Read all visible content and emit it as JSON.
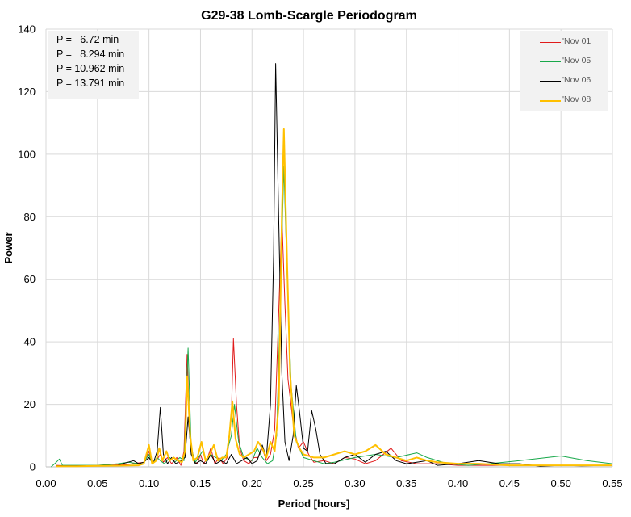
{
  "chart_data": {
    "type": "line",
    "title": "G29-38 Lomb-Scargle Periodogram",
    "xlabel": "Period [hours]",
    "ylabel": "Power",
    "xlim": [
      0,
      0.55
    ],
    "ylim": [
      0,
      140
    ],
    "x_ticks": [
      "0.00",
      "0.05",
      "0.10",
      "0.15",
      "0.20",
      "0.25",
      "0.30",
      "0.35",
      "0.40",
      "0.45",
      "0.50",
      "0.55"
    ],
    "y_ticks": [
      "0",
      "20",
      "40",
      "60",
      "80",
      "100",
      "120",
      "140"
    ],
    "grid": "vertical-and-horizontal",
    "legend_position": "top-right",
    "annotations": [
      "P =   6.72 min",
      "P =   8.294 min",
      "P = 10.962 min",
      "P = 13.791 min"
    ],
    "series": [
      {
        "name": "'Nov 01",
        "color": "#e01b1b",
        "points": [
          [
            0.01,
            0.5
          ],
          [
            0.02,
            0.3
          ],
          [
            0.04,
            0.4
          ],
          [
            0.06,
            0.5
          ],
          [
            0.08,
            0.8
          ],
          [
            0.095,
            1.5
          ],
          [
            0.1,
            5
          ],
          [
            0.103,
            1
          ],
          [
            0.107,
            2
          ],
          [
            0.111,
            4
          ],
          [
            0.114,
            1.5
          ],
          [
            0.118,
            3
          ],
          [
            0.122,
            1
          ],
          [
            0.127,
            3
          ],
          [
            0.131,
            0.5
          ],
          [
            0.134,
            5
          ],
          [
            0.137,
            36
          ],
          [
            0.14,
            8
          ],
          [
            0.143,
            2
          ],
          [
            0.147,
            1
          ],
          [
            0.15,
            4
          ],
          [
            0.153,
            1
          ],
          [
            0.157,
            3
          ],
          [
            0.16,
            6
          ],
          [
            0.164,
            1
          ],
          [
            0.168,
            3
          ],
          [
            0.172,
            1
          ],
          [
            0.176,
            3
          ],
          [
            0.18,
            16
          ],
          [
            0.182,
            41
          ],
          [
            0.185,
            20
          ],
          [
            0.188,
            6
          ],
          [
            0.192,
            2
          ],
          [
            0.197,
            1
          ],
          [
            0.202,
            3
          ],
          [
            0.206,
            3
          ],
          [
            0.21,
            6
          ],
          [
            0.214,
            2
          ],
          [
            0.218,
            4
          ],
          [
            0.222,
            12
          ],
          [
            0.226,
            50
          ],
          [
            0.229,
            80
          ],
          [
            0.232,
            52
          ],
          [
            0.235,
            28
          ],
          [
            0.24,
            14
          ],
          [
            0.245,
            6
          ],
          [
            0.25,
            8
          ],
          [
            0.255,
            4
          ],
          [
            0.26,
            1.5
          ],
          [
            0.27,
            2
          ],
          [
            0.28,
            1
          ],
          [
            0.29,
            3
          ],
          [
            0.3,
            2.5
          ],
          [
            0.31,
            1
          ],
          [
            0.32,
            2
          ],
          [
            0.335,
            6
          ],
          [
            0.345,
            2
          ],
          [
            0.36,
            1
          ],
          [
            0.38,
            1
          ],
          [
            0.4,
            0.5
          ],
          [
            0.45,
            0.5
          ],
          [
            0.5,
            0.5
          ],
          [
            0.55,
            0.5
          ]
        ]
      },
      {
        "name": "'Nov 05",
        "color": "#18a84a",
        "points": [
          [
            0.005,
            0
          ],
          [
            0.01,
            1.5
          ],
          [
            0.013,
            2.5
          ],
          [
            0.016,
            0.5
          ],
          [
            0.03,
            0.5
          ],
          [
            0.05,
            0.5
          ],
          [
            0.07,
            1
          ],
          [
            0.08,
            1.5
          ],
          [
            0.09,
            1
          ],
          [
            0.095,
            1.5
          ],
          [
            0.1,
            4
          ],
          [
            0.103,
            1
          ],
          [
            0.108,
            3
          ],
          [
            0.111,
            2
          ],
          [
            0.115,
            1
          ],
          [
            0.12,
            3
          ],
          [
            0.125,
            1.5
          ],
          [
            0.13,
            3
          ],
          [
            0.134,
            2
          ],
          [
            0.138,
            38
          ],
          [
            0.141,
            6
          ],
          [
            0.145,
            1.5
          ],
          [
            0.148,
            3
          ],
          [
            0.152,
            5
          ],
          [
            0.156,
            1.5
          ],
          [
            0.16,
            4
          ],
          [
            0.165,
            3
          ],
          [
            0.17,
            2
          ],
          [
            0.175,
            4
          ],
          [
            0.18,
            10
          ],
          [
            0.183,
            20
          ],
          [
            0.187,
            8
          ],
          [
            0.192,
            3
          ],
          [
            0.2,
            2
          ],
          [
            0.205,
            6
          ],
          [
            0.21,
            3
          ],
          [
            0.215,
            1
          ],
          [
            0.22,
            2
          ],
          [
            0.224,
            10
          ],
          [
            0.228,
            60
          ],
          [
            0.231,
            96
          ],
          [
            0.234,
            62
          ],
          [
            0.238,
            26
          ],
          [
            0.243,
            8
          ],
          [
            0.25,
            3
          ],
          [
            0.26,
            2
          ],
          [
            0.27,
            1
          ],
          [
            0.28,
            1.5
          ],
          [
            0.3,
            3
          ],
          [
            0.32,
            4
          ],
          [
            0.34,
            3
          ],
          [
            0.36,
            4.5
          ],
          [
            0.37,
            3
          ],
          [
            0.39,
            1
          ],
          [
            0.41,
            0.5
          ],
          [
            0.43,
            1
          ],
          [
            0.46,
            2
          ],
          [
            0.5,
            3.5
          ],
          [
            0.525,
            2
          ],
          [
            0.55,
            1
          ]
        ]
      },
      {
        "name": "'Nov 06",
        "color": "#000000",
        "points": [
          [
            0.01,
            0.3
          ],
          [
            0.03,
            0.3
          ],
          [
            0.05,
            0.4
          ],
          [
            0.07,
            0.6
          ],
          [
            0.085,
            2
          ],
          [
            0.09,
            1
          ],
          [
            0.095,
            1.5
          ],
          [
            0.1,
            3
          ],
          [
            0.104,
            1
          ],
          [
            0.108,
            5
          ],
          [
            0.111,
            19
          ],
          [
            0.114,
            4
          ],
          [
            0.118,
            1
          ],
          [
            0.122,
            3
          ],
          [
            0.126,
            1
          ],
          [
            0.131,
            2
          ],
          [
            0.135,
            3
          ],
          [
            0.138,
            16
          ],
          [
            0.141,
            4
          ],
          [
            0.145,
            1
          ],
          [
            0.15,
            2
          ],
          [
            0.155,
            1
          ],
          [
            0.16,
            4
          ],
          [
            0.165,
            1
          ],
          [
            0.17,
            2
          ],
          [
            0.175,
            1
          ],
          [
            0.18,
            4
          ],
          [
            0.185,
            1
          ],
          [
            0.19,
            2
          ],
          [
            0.195,
            3
          ],
          [
            0.2,
            1
          ],
          [
            0.205,
            2
          ],
          [
            0.21,
            7
          ],
          [
            0.214,
            3
          ],
          [
            0.218,
            20
          ],
          [
            0.221,
            68
          ],
          [
            0.223,
            129
          ],
          [
            0.226,
            78
          ],
          [
            0.229,
            30
          ],
          [
            0.232,
            8
          ],
          [
            0.236,
            2
          ],
          [
            0.24,
            10
          ],
          [
            0.243,
            26
          ],
          [
            0.246,
            18
          ],
          [
            0.25,
            6
          ],
          [
            0.254,
            5
          ],
          [
            0.258,
            18
          ],
          [
            0.262,
            12
          ],
          [
            0.266,
            4
          ],
          [
            0.272,
            1
          ],
          [
            0.28,
            1
          ],
          [
            0.29,
            3
          ],
          [
            0.3,
            4
          ],
          [
            0.31,
            1.5
          ],
          [
            0.32,
            4
          ],
          [
            0.33,
            5
          ],
          [
            0.34,
            2
          ],
          [
            0.35,
            1
          ],
          [
            0.36,
            1.5
          ],
          [
            0.37,
            2
          ],
          [
            0.38,
            0.5
          ],
          [
            0.4,
            1
          ],
          [
            0.42,
            2
          ],
          [
            0.44,
            1
          ],
          [
            0.46,
            1
          ],
          [
            0.48,
            0.2
          ],
          [
            0.5,
            0.5
          ],
          [
            0.52,
            0.3
          ],
          [
            0.55,
            0.5
          ]
        ]
      },
      {
        "name": "'Nov 08",
        "color": "#ffc000",
        "points": [
          [
            0.01,
            0.2
          ],
          [
            0.03,
            0.2
          ],
          [
            0.05,
            0.3
          ],
          [
            0.07,
            0.4
          ],
          [
            0.09,
            0.5
          ],
          [
            0.095,
            1
          ],
          [
            0.1,
            7
          ],
          [
            0.103,
            1
          ],
          [
            0.107,
            2
          ],
          [
            0.11,
            6
          ],
          [
            0.113,
            2
          ],
          [
            0.117,
            5
          ],
          [
            0.12,
            2
          ],
          [
            0.124,
            3
          ],
          [
            0.128,
            2
          ],
          [
            0.132,
            1.5
          ],
          [
            0.135,
            5
          ],
          [
            0.137,
            29
          ],
          [
            0.14,
            10
          ],
          [
            0.143,
            2
          ],
          [
            0.147,
            3
          ],
          [
            0.151,
            8
          ],
          [
            0.155,
            2
          ],
          [
            0.159,
            4
          ],
          [
            0.163,
            7
          ],
          [
            0.167,
            2
          ],
          [
            0.171,
            3
          ],
          [
            0.175,
            3
          ],
          [
            0.178,
            10
          ],
          [
            0.181,
            21
          ],
          [
            0.184,
            9
          ],
          [
            0.188,
            4
          ],
          [
            0.192,
            3
          ],
          [
            0.197,
            4
          ],
          [
            0.202,
            5
          ],
          [
            0.206,
            8
          ],
          [
            0.21,
            6
          ],
          [
            0.214,
            3
          ],
          [
            0.218,
            8
          ],
          [
            0.222,
            5
          ],
          [
            0.226,
            20
          ],
          [
            0.229,
            80
          ],
          [
            0.231,
            108
          ],
          [
            0.234,
            66
          ],
          [
            0.237,
            30
          ],
          [
            0.241,
            10
          ],
          [
            0.246,
            6
          ],
          [
            0.25,
            4
          ],
          [
            0.26,
            3
          ],
          [
            0.27,
            3
          ],
          [
            0.28,
            4
          ],
          [
            0.29,
            5
          ],
          [
            0.3,
            4
          ],
          [
            0.31,
            5
          ],
          [
            0.32,
            7
          ],
          [
            0.33,
            4
          ],
          [
            0.34,
            3
          ],
          [
            0.35,
            2
          ],
          [
            0.36,
            3
          ],
          [
            0.37,
            2
          ],
          [
            0.38,
            1.5
          ],
          [
            0.4,
            1
          ],
          [
            0.42,
            1
          ],
          [
            0.45,
            0.5
          ],
          [
            0.5,
            0.5
          ],
          [
            0.55,
            0.5
          ]
        ]
      }
    ]
  }
}
